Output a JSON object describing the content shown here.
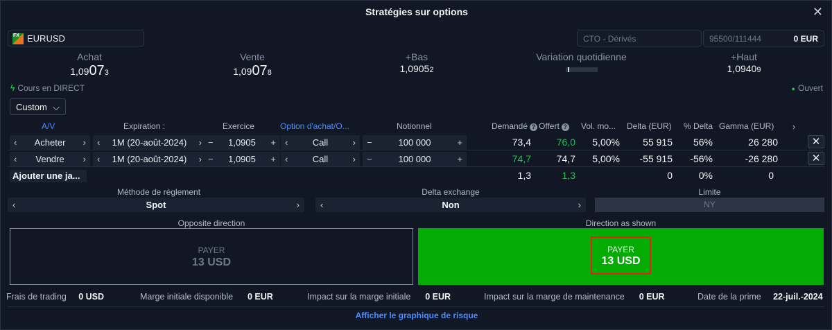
{
  "window": {
    "title": "Stratégies sur options",
    "close_glyph": "✕"
  },
  "instrument": {
    "icon_label": "FX",
    "icon": "fx-icon",
    "symbol": "EURUSD"
  },
  "account": {
    "name": "CTO - Dérivés",
    "id": "95500/111444",
    "balance": "0 EUR"
  },
  "quotes": {
    "bid": {
      "label": "Achat",
      "prefix": "1,09",
      "big": "07",
      "suffix": "3"
    },
    "ask": {
      "label": "Vente",
      "prefix": "1,09",
      "big": "07",
      "suffix": "8"
    },
    "low": {
      "label": "+Bas",
      "main": "1,0905",
      "suffix": "2"
    },
    "change": {
      "label": "Variation quotidienne"
    },
    "high": {
      "label": "+Haut",
      "main": "1,0940",
      "suffix": "9"
    }
  },
  "status": {
    "live": "Cours en DIRECT",
    "live_icon": "bolt-icon",
    "market": "Ouvert",
    "market_color": "#1ec34b"
  },
  "strategy_select": {
    "value": "Custom"
  },
  "columns": {
    "side": "A/V",
    "expiration": "Expiration :",
    "strike": "Exercice",
    "type": "Option d'achat/O...",
    "notional": "Notionnel",
    "bid": "Demandé",
    "offer": "Offert",
    "vol": "Vol. mo...",
    "delta": "Delta (EUR)",
    "pct_delta": "% Delta",
    "gamma": "Gamma (EUR)"
  },
  "legs": [
    {
      "side": "Acheter",
      "expiry": "1M (20-août-2024)",
      "strike": "1,0905",
      "type": "Call",
      "notional": "100 000",
      "bid": "73,4",
      "offer": "76,0",
      "vol": "5,00%",
      "delta": "55 915",
      "pct_delta": "56%",
      "gamma": "26 280"
    },
    {
      "side": "Vendre",
      "expiry": "1M (20-août-2024)",
      "strike": "1,0905",
      "type": "Call",
      "notional": "100 000",
      "bid": "74,7",
      "offer": "74,7",
      "vol": "5,00%",
      "delta": "-55 915",
      "pct_delta": "-56%",
      "gamma": "-26 280"
    }
  ],
  "totals": {
    "add_leg": "Ajouter une ja...",
    "bid": "1,3",
    "offer": "1,3",
    "delta": "0",
    "pct_delta": "0%",
    "gamma": "0"
  },
  "settlement": {
    "method_label": "Méthode de règlement",
    "method": "Spot",
    "delta_label": "Delta exchange",
    "delta": "Non",
    "limit_label": "Limite",
    "limit": "NY"
  },
  "direction": {
    "opposite_label": "Opposite direction",
    "opposite_kind": "PAYER",
    "opposite_amount": "13 USD",
    "shown_label": "Direction as shown",
    "shown_kind": "PAYER",
    "shown_amount": "13 USD",
    "shown_color": "#03ab03"
  },
  "footer": {
    "fees_label": "Frais de trading",
    "fees": "0 USD",
    "margin_label": "Marge initiale disponible",
    "margin": "0 EUR",
    "impact_label": "Impact sur la marge initiale",
    "impact": "0 EUR",
    "maint_label": "Impact sur la marge de maintenance",
    "maint": "0 EUR",
    "date_label": "Date de la prime",
    "date": "22-juil.-2024"
  },
  "risk_link": "Afficher le graphique de risque"
}
